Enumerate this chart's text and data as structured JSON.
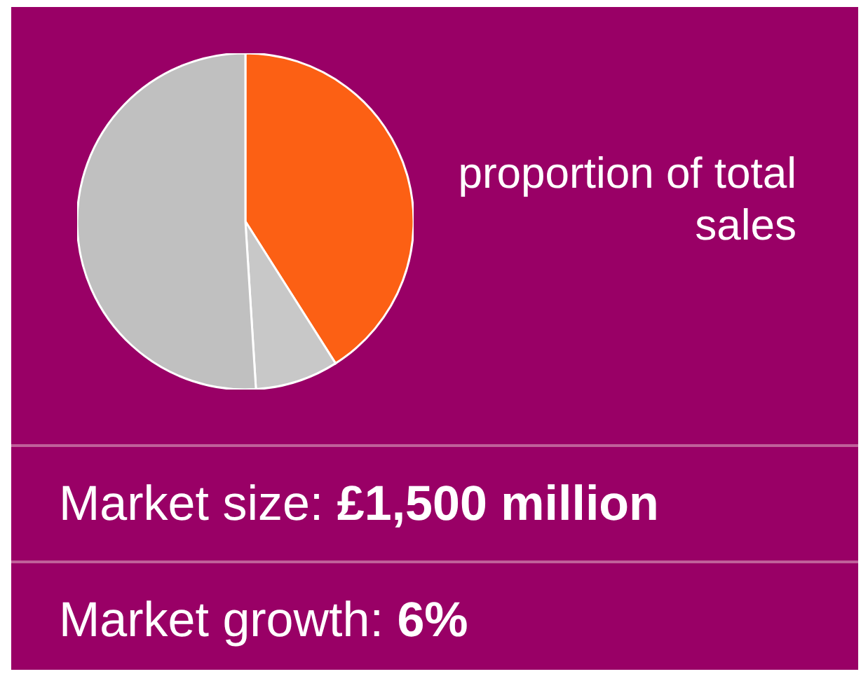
{
  "chart_data": {
    "type": "pie",
    "title": "proportion of total sales",
    "categories": [
      null,
      null,
      null
    ],
    "values": [
      41,
      8,
      51
    ],
    "colors": [
      "#fc6014",
      "#c8c8c8",
      "#c0c0c0"
    ],
    "annotations": [
      "Market size: £1,500 million",
      "Market growth: 6%"
    ]
  }
}
